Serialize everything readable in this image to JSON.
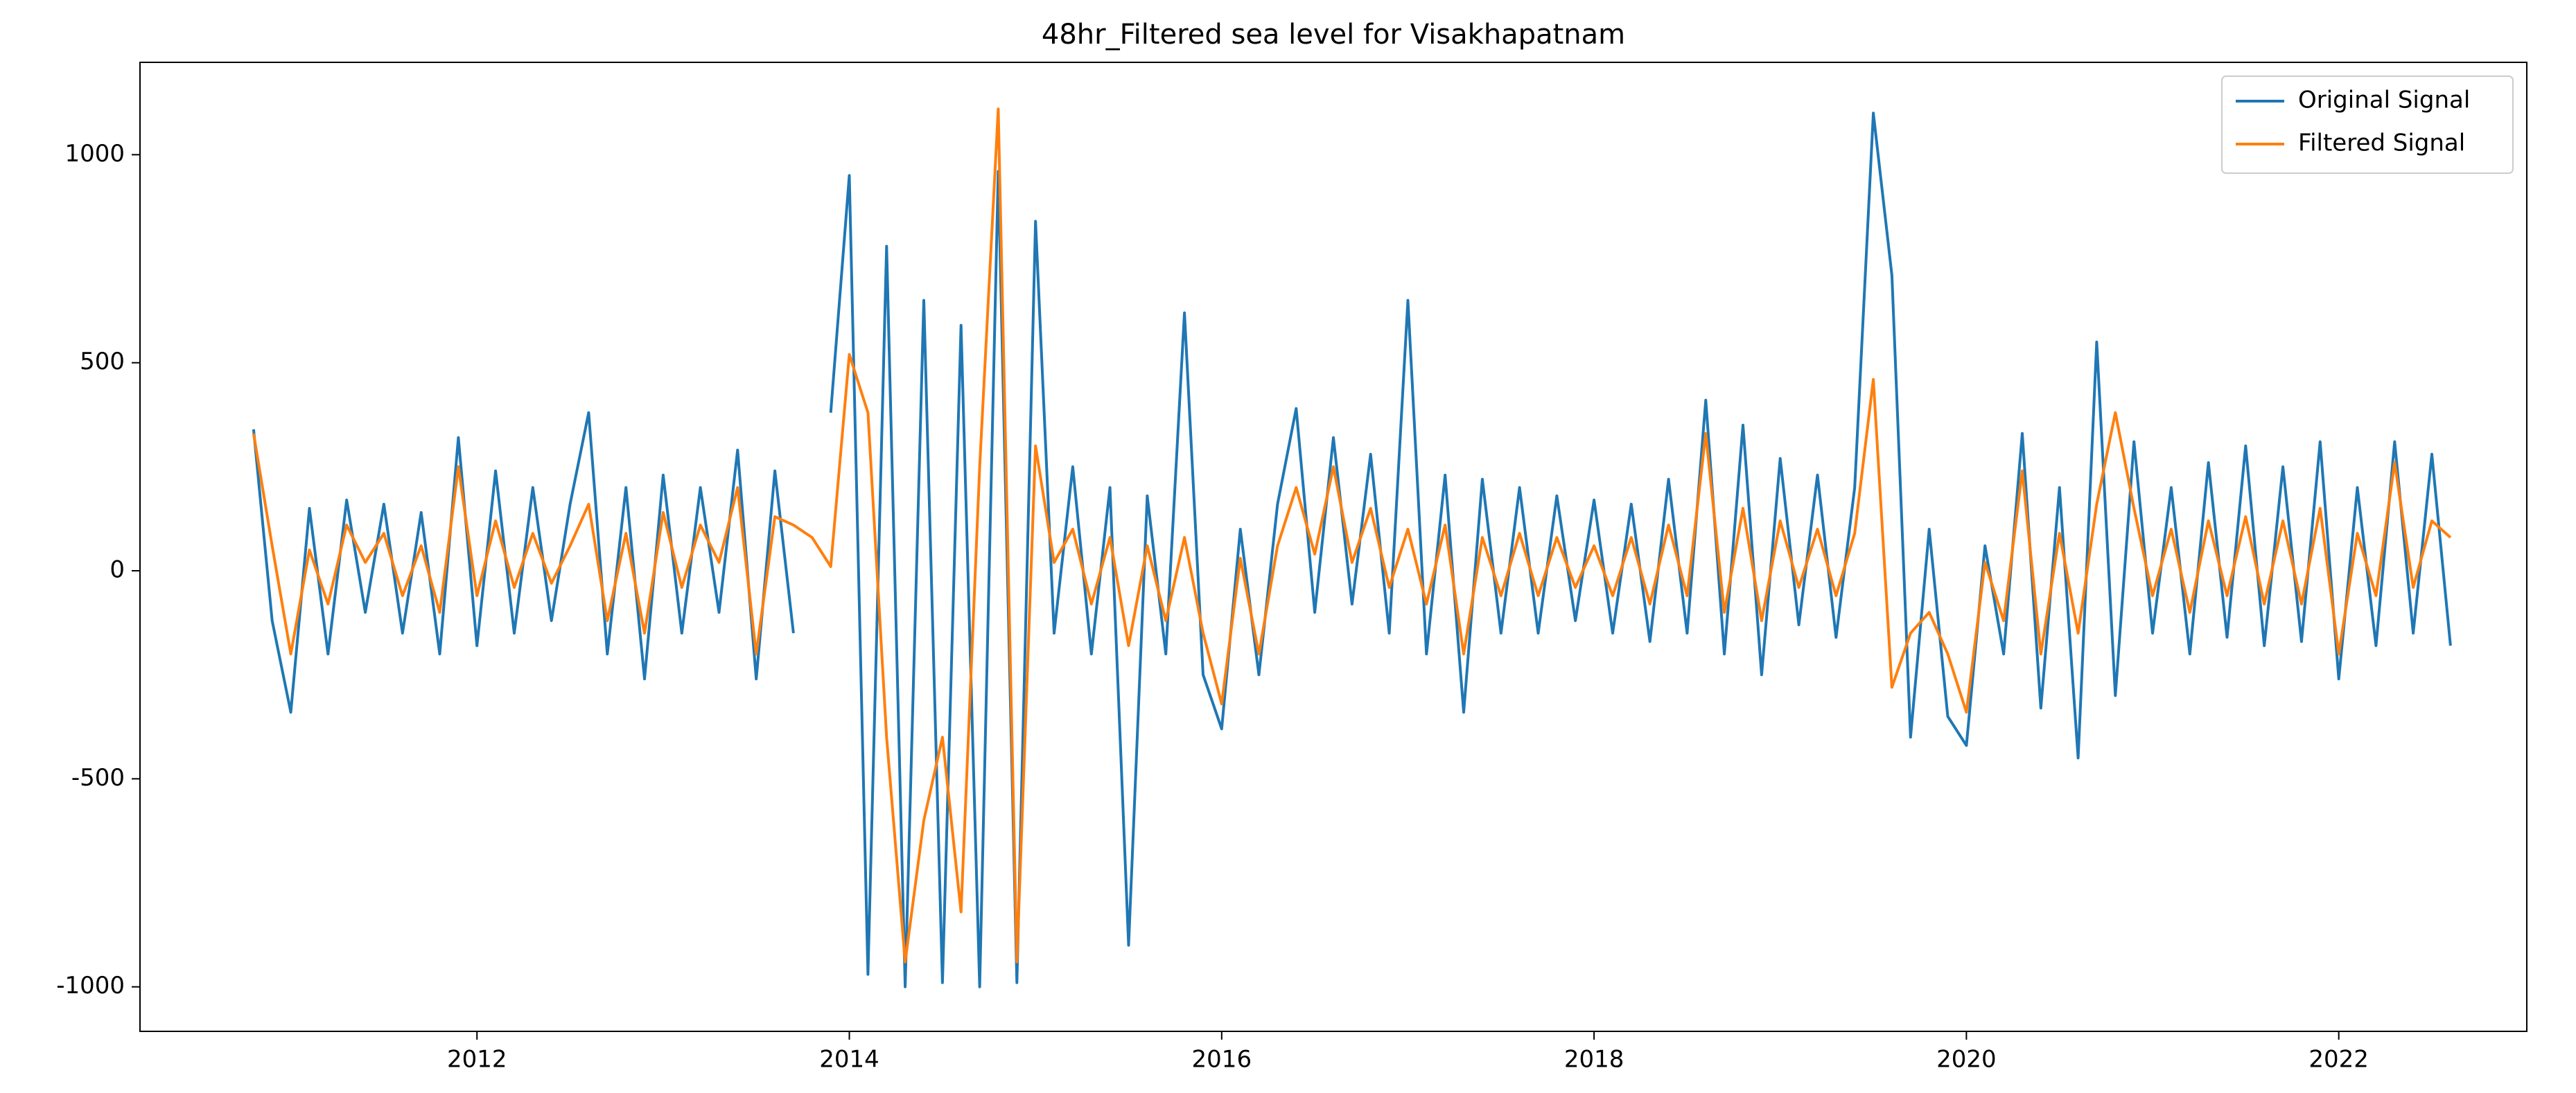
{
  "chart_data": {
    "type": "line",
    "title": "48hr_Filtered sea level for Visakhapatnam",
    "x": [
      2010.8,
      2010.9,
      2011.0,
      2011.1,
      2011.2,
      2011.3,
      2011.4,
      2011.5,
      2011.6,
      2011.7,
      2011.8,
      2011.9,
      2012.0,
      2012.1,
      2012.2,
      2012.3,
      2012.4,
      2012.5,
      2012.6,
      2012.7,
      2012.8,
      2012.9,
      2013.0,
      2013.1,
      2013.2,
      2013.3,
      2013.4,
      2013.5,
      2013.6,
      2013.7,
      2013.8,
      2013.9,
      2014.0,
      2014.1,
      2014.2,
      2014.3,
      2014.4,
      2014.5,
      2014.6,
      2014.7,
      2014.8,
      2014.9,
      2015.0,
      2015.1,
      2015.2,
      2015.3,
      2015.4,
      2015.5,
      2015.6,
      2015.7,
      2015.8,
      2015.9,
      2016.0,
      2016.1,
      2016.2,
      2016.3,
      2016.4,
      2016.5,
      2016.6,
      2016.7,
      2016.8,
      2016.9,
      2017.0,
      2017.1,
      2017.2,
      2017.3,
      2017.4,
      2017.5,
      2017.6,
      2017.7,
      2017.8,
      2017.9,
      2018.0,
      2018.1,
      2018.2,
      2018.3,
      2018.4,
      2018.5,
      2018.6,
      2018.7,
      2018.8,
      2018.9,
      2019.0,
      2019.1,
      2019.2,
      2019.3,
      2019.4,
      2019.5,
      2019.6,
      2019.7,
      2019.8,
      2019.9,
      2020.0,
      2020.1,
      2020.2,
      2020.3,
      2020.4,
      2020.5,
      2020.6,
      2020.7,
      2020.8,
      2020.9,
      2021.0,
      2021.1,
      2021.2,
      2021.3,
      2021.4,
      2021.5,
      2021.6,
      2021.7,
      2021.8,
      2021.9,
      2022.0,
      2022.1,
      2022.2,
      2022.3,
      2022.4,
      2022.5,
      2022.6
    ],
    "series": [
      {
        "name": "Original Signal",
        "color": "#1f77b4",
        "values": [
          340,
          -120,
          -340,
          150,
          -200,
          170,
          -100,
          160,
          -150,
          140,
          -200,
          320,
          -180,
          240,
          -150,
          200,
          -120,
          160,
          380,
          -200,
          200,
          -260,
          230,
          -150,
          200,
          -100,
          290,
          -260,
          240,
          -150,
          null,
          380,
          950,
          -970,
          780,
          -1000,
          650,
          -990,
          590,
          -1000,
          960,
          -990,
          840,
          -150,
          250,
          -200,
          200,
          -900,
          180,
          -200,
          620,
          -250,
          -380,
          100,
          -250,
          160,
          390,
          -100,
          320,
          -80,
          280,
          -150,
          650,
          -200,
          230,
          -340,
          220,
          -150,
          200,
          -150,
          180,
          -120,
          170,
          -150,
          160,
          -170,
          220,
          -150,
          410,
          -200,
          350,
          -250,
          270,
          -130,
          230,
          -160,
          200,
          1100,
          710,
          -400,
          100,
          -350,
          -420,
          60,
          -200,
          330,
          -330,
          200,
          -450,
          550,
          -300,
          310,
          -150,
          200,
          -200,
          260,
          -160,
          300,
          -180,
          250,
          -170,
          310,
          -260,
          200,
          -180,
          310,
          -150,
          280,
          -180
        ]
      },
      {
        "name": "Filtered Signal",
        "color": "#ff7f0e",
        "values": [
          330,
          60,
          -200,
          50,
          -80,
          110,
          20,
          90,
          -60,
          60,
          -100,
          250,
          -60,
          120,
          -40,
          90,
          -30,
          60,
          160,
          -120,
          90,
          -150,
          140,
          -40,
          110,
          20,
          200,
          -200,
          130,
          110,
          80,
          10,
          520,
          380,
          -400,
          -940,
          -600,
          -400,
          -820,
          250,
          1110,
          -940,
          300,
          20,
          100,
          -80,
          80,
          -180,
          60,
          -120,
          80,
          -150,
          -320,
          30,
          -200,
          60,
          200,
          40,
          250,
          20,
          150,
          -40,
          100,
          -80,
          110,
          -200,
          80,
          -60,
          90,
          -60,
          80,
          -40,
          60,
          -60,
          80,
          -80,
          110,
          -60,
          330,
          -100,
          150,
          -120,
          120,
          -40,
          100,
          -60,
          90,
          460,
          -280,
          -150,
          -100,
          -200,
          -340,
          20,
          -120,
          240,
          -200,
          90,
          -150,
          160,
          380,
          150,
          -60,
          100,
          -100,
          120,
          -60,
          130,
          -80,
          120,
          -80,
          150,
          -200,
          90,
          -60,
          260,
          -40,
          120,
          80
        ]
      }
    ],
    "xlim": [
      2010.19,
      2023.01
    ],
    "xticks": [
      2012,
      2014,
      2016,
      2018,
      2020,
      2022
    ],
    "ylim": [
      -1107,
      1222
    ],
    "yticks": [
      -1000,
      -500,
      0,
      500,
      1000
    ],
    "grid": false,
    "legend": "upper right"
  }
}
